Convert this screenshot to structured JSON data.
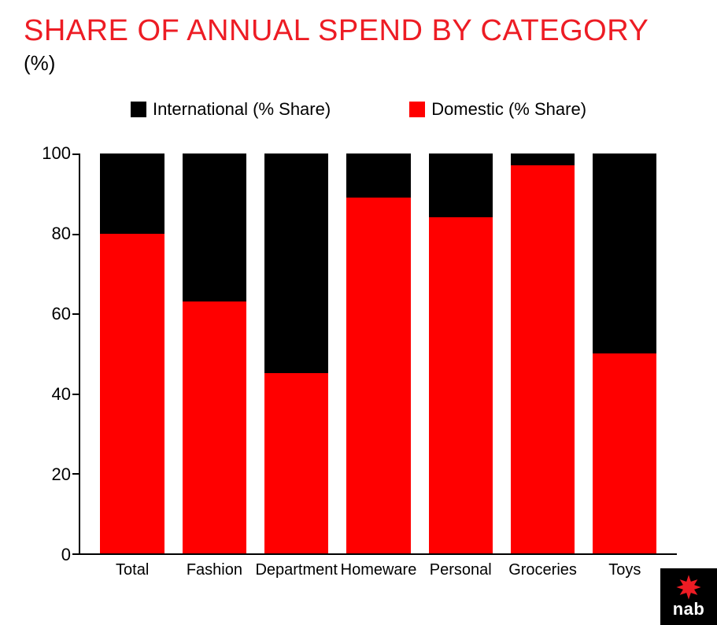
{
  "title": "SHARE OF ANNUAL SPEND BY CATEGORY",
  "subtitle": "(%)",
  "legend": {
    "series_top": {
      "label": "International (% Share)",
      "color": "#000000"
    },
    "series_bottom": {
      "label": "Domestic (% Share)",
      "color": "#ff0000"
    }
  },
  "chart": {
    "type": "stacked-bar",
    "ylim": [
      0,
      100
    ],
    "ytick_step": 20,
    "y_ticks": [
      0,
      20,
      40,
      60,
      80,
      100
    ],
    "background_color": "#ffffff",
    "axis_color": "#000000",
    "bar_width_ratio": 0.78,
    "label_fontsize": 20,
    "tick_fontsize": 22,
    "categories": [
      "Total",
      "Fashion",
      "Department",
      "Homeware",
      "Personal",
      "Groceries",
      "Toys"
    ],
    "series": {
      "domestic": {
        "color": "#ff0000",
        "values": [
          80,
          63,
          45,
          89,
          84,
          97,
          50
        ]
      },
      "international": {
        "color": "#000000",
        "values": [
          20,
          37,
          55,
          11,
          16,
          3,
          50
        ]
      }
    }
  },
  "brand": {
    "text": "nab",
    "star_color": "#ed1c24",
    "bg_color": "#000000"
  }
}
